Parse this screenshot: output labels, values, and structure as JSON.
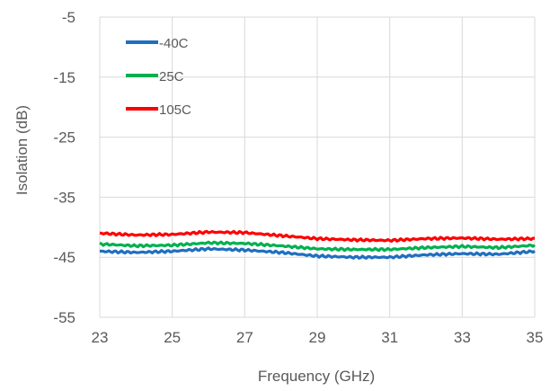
{
  "chart_data": {
    "type": "line",
    "title": "",
    "xlabel": "Frequency (GHz)",
    "ylabel": "Isolation (dB)",
    "xlim": [
      23,
      35
    ],
    "ylim": [
      -55,
      -5
    ],
    "xticks": [
      23,
      25,
      27,
      29,
      31,
      33,
      35
    ],
    "yticks": [
      -5,
      -15,
      -25,
      -35,
      -45,
      -55
    ],
    "xtick_labels": [
      "23",
      "25",
      "27",
      "29",
      "31",
      "33",
      "35"
    ],
    "ytick_labels": [
      "-5",
      "-15",
      "-25",
      "-35",
      "-45",
      "-55"
    ],
    "grid": {
      "x": true,
      "y": true,
      "color": "#d9d9d9"
    },
    "legend": {
      "placement": "top-left",
      "entries": [
        "-40C",
        "25C",
        "105C"
      ]
    },
    "series": [
      {
        "name": "-40C",
        "color": "#1f6fc0",
        "x": [
          23,
          24,
          25,
          26,
          27,
          28,
          29,
          30,
          31,
          32,
          33,
          34,
          35
        ],
        "y": [
          -44.0,
          -44.2,
          -44.0,
          -43.6,
          -43.8,
          -44.2,
          -44.8,
          -45.0,
          -45.0,
          -44.6,
          -44.4,
          -44.5,
          -44.0
        ]
      },
      {
        "name": "25C",
        "color": "#00b050",
        "x": [
          23,
          24,
          25,
          26,
          27,
          28,
          29,
          30,
          31,
          32,
          33,
          34,
          35
        ],
        "y": [
          -42.8,
          -43.1,
          -43.0,
          -42.6,
          -42.7,
          -43.1,
          -43.6,
          -43.7,
          -43.7,
          -43.4,
          -43.2,
          -43.4,
          -43.0
        ]
      },
      {
        "name": "105C",
        "color": "#ff0000",
        "x": [
          23,
          24,
          25,
          26,
          27,
          28,
          29,
          30,
          31,
          32,
          33,
          34,
          35
        ],
        "y": [
          -41.0,
          -41.3,
          -41.2,
          -40.8,
          -40.9,
          -41.4,
          -41.9,
          -42.1,
          -42.2,
          -41.9,
          -41.8,
          -42.0,
          -41.9
        ]
      }
    ]
  }
}
